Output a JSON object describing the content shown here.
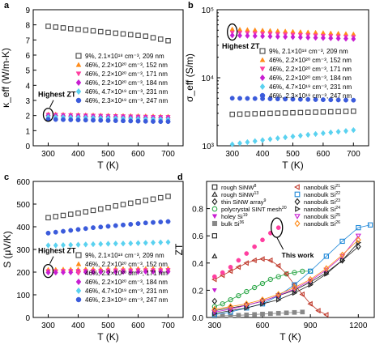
{
  "chart_data": [
    {
      "panel": "a",
      "type": "scatter",
      "xlabel": "T (K)",
      "ylabel": "κ_eff (W/m-K)",
      "xlim": [
        250,
        750
      ],
      "ylim": [
        0,
        9
      ],
      "xticks": [
        300,
        400,
        500,
        600,
        700
      ],
      "yticks": [
        0,
        1,
        2,
        3,
        4,
        5,
        6,
        7,
        8,
        9
      ],
      "legend_position": "right",
      "annotation": "Highest ZT",
      "x": [
        300,
        325,
        350,
        375,
        400,
        425,
        450,
        475,
        500,
        525,
        550,
        575,
        600,
        625,
        650,
        675,
        700
      ],
      "series": [
        {
          "name": "9%, 2.1×10¹⁸ cm⁻³, 209 nm",
          "marker": "square-open",
          "color": "#444444",
          "values": [
            7.9,
            7.85,
            7.8,
            7.75,
            7.7,
            7.65,
            7.6,
            7.55,
            7.5,
            7.45,
            7.4,
            7.35,
            7.3,
            7.25,
            7.15,
            7.05,
            6.95
          ]
        },
        {
          "name": "46%, 2.2×10²⁰ cm⁻³, 152 nm",
          "marker": "triangle",
          "color": "#ff8c1a",
          "values": [
            2.1,
            2.1,
            2.08,
            2.07,
            2.06,
            2.05,
            2.04,
            2.03,
            2.02,
            2.01,
            2.0,
            2.0,
            1.99,
            1.98,
            1.97,
            1.96,
            1.95
          ]
        },
        {
          "name": "46%, 2.2×10²⁰ cm⁻³, 171 nm",
          "marker": "triangle-down",
          "color": "#ff3fa0",
          "values": [
            2.05,
            2.04,
            2.03,
            2.02,
            2.01,
            2.0,
            1.99,
            1.98,
            1.97,
            1.96,
            1.95,
            1.94,
            1.93,
            1.92,
            1.91,
            1.9,
            1.9
          ]
        },
        {
          "name": "46%, 2.2×10²⁰ cm⁻³, 184 nm",
          "marker": "diamond",
          "color": "#c81ed2",
          "values": [
            2.0,
            1.99,
            1.98,
            1.97,
            1.96,
            1.95,
            1.94,
            1.93,
            1.92,
            1.91,
            1.9,
            1.89,
            1.88,
            1.87,
            1.86,
            1.85,
            1.85
          ]
        },
        {
          "name": "46%, 4.7×10¹⁹ cm⁻³, 231 nm",
          "marker": "diamond",
          "color": "#5ad2f0",
          "values": [
            1.9,
            1.89,
            1.88,
            1.87,
            1.86,
            1.85,
            1.84,
            1.83,
            1.82,
            1.81,
            1.8,
            1.79,
            1.78,
            1.77,
            1.76,
            1.75,
            1.75
          ]
        },
        {
          "name": "46%, 2.3×10¹⁹ cm⁻³, 247 nm",
          "marker": "circle",
          "color": "#3b5bdb",
          "values": [
            1.75,
            1.74,
            1.73,
            1.72,
            1.71,
            1.7,
            1.69,
            1.68,
            1.67,
            1.66,
            1.65,
            1.64,
            1.63,
            1.62,
            1.61,
            1.6,
            1.6
          ]
        }
      ]
    },
    {
      "panel": "b",
      "type": "scatter",
      "xlabel": "T (K)",
      "ylabel": "σ_eff (S/m)",
      "yscale": "log",
      "xlim": [
        250,
        750
      ],
      "ylim": [
        1000,
        100000
      ],
      "xticks": [
        300,
        400,
        500,
        600,
        700
      ],
      "ytick_labels": [
        "10³",
        "10⁴",
        "10⁵"
      ],
      "legend_position": "right",
      "annotation": "Highest ZT",
      "x": [
        300,
        325,
        350,
        375,
        400,
        425,
        450,
        475,
        500,
        525,
        550,
        575,
        600,
        625,
        650,
        675,
        700
      ],
      "series": [
        {
          "name": "9%, 2.1×10¹⁸ cm⁻³, 209 nm",
          "marker": "square-open",
          "color": "#444444",
          "values": [
            2900,
            2920,
            2940,
            2960,
            2980,
            3000,
            3020,
            3040,
            3060,
            3080,
            3100,
            3120,
            3140,
            3160,
            3180,
            3200,
            3220
          ]
        },
        {
          "name": "46%, 2.2×10²⁰ cm⁻³, 152 nm",
          "marker": "triangle",
          "color": "#ff8c1a",
          "values": [
            52000,
            51500,
            51000,
            50500,
            50000,
            49500,
            49000,
            48500,
            48000,
            47500,
            47000,
            46500,
            46000,
            45500,
            45000,
            44500,
            44000
          ]
        },
        {
          "name": "46%, 2.2×10²⁰ cm⁻³, 171 nm",
          "marker": "triangle-down",
          "color": "#ff3fa0",
          "values": [
            46000,
            45600,
            45200,
            44800,
            44400,
            44000,
            43600,
            43200,
            42800,
            42400,
            42000,
            41600,
            41200,
            40800,
            40400,
            40000,
            39600
          ]
        },
        {
          "name": "46%, 2.2×10²⁰ cm⁻³, 184 nm",
          "marker": "diamond",
          "color": "#c81ed2",
          "values": [
            42000,
            41700,
            41400,
            41100,
            40800,
            40500,
            40200,
            39900,
            39600,
            39300,
            39000,
            38700,
            38400,
            38100,
            37800,
            37500,
            37200
          ]
        },
        {
          "name": "46%, 4.7×10¹⁹ cm⁻³, 231 nm",
          "marker": "diamond",
          "color": "#5ad2f0",
          "values": [
            1050,
            1090,
            1130,
            1170,
            1210,
            1250,
            1290,
            1330,
            1370,
            1410,
            1450,
            1490,
            1530,
            1570,
            1610,
            1650,
            1700
          ]
        },
        {
          "name": "46%, 2.3×10¹⁹ cm⁻³, 247 nm",
          "marker": "circle",
          "color": "#3b5bdb",
          "values": [
            5000,
            4980,
            4960,
            4940,
            4920,
            4900,
            4880,
            4860,
            4840,
            4820,
            4800,
            4780,
            4760,
            4740,
            4720,
            4700,
            4680
          ]
        }
      ]
    },
    {
      "panel": "c",
      "type": "scatter",
      "xlabel": "T (K)",
      "ylabel": "S (μV/K)",
      "xlim": [
        250,
        750
      ],
      "ylim": [
        0,
        600
      ],
      "xticks": [
        300,
        400,
        500,
        600,
        700
      ],
      "yticks": [
        0,
        100,
        200,
        300,
        400,
        500,
        600
      ],
      "legend_position": "bottom-right",
      "annotation": "Highest ZT",
      "x": [
        300,
        325,
        350,
        375,
        400,
        425,
        450,
        475,
        500,
        525,
        550,
        575,
        600,
        625,
        650,
        675,
        700
      ],
      "series": [
        {
          "name": "9%, 2.1×10¹⁸ cm⁻³, 209 nm",
          "marker": "square-open",
          "color": "#444444",
          "values": [
            440,
            445,
            450,
            455,
            460,
            466,
            472,
            478,
            485,
            492,
            498,
            504,
            510,
            516,
            522,
            528,
            534
          ]
        },
        {
          "name": "46%, 2.2×10²⁰ cm⁻³, 152 nm",
          "marker": "triangle",
          "color": "#ff8c1a",
          "values": [
            212,
            212,
            213,
            213,
            213,
            214,
            214,
            214,
            215,
            215,
            215,
            215,
            216,
            216,
            216,
            216,
            217
          ]
        },
        {
          "name": "46%, 2.2×10²⁰ cm⁻³, 171 nm",
          "marker": "triangle-down",
          "color": "#ff3fa0",
          "values": [
            204,
            204,
            205,
            205,
            205,
            206,
            206,
            206,
            207,
            207,
            207,
            207,
            208,
            208,
            208,
            208,
            209
          ]
        },
        {
          "name": "46%, 2.2×10²⁰ cm⁻³, 184 nm",
          "marker": "diamond",
          "color": "#c81ed2",
          "values": [
            198,
            198,
            199,
            199,
            199,
            200,
            200,
            200,
            200,
            201,
            201,
            201,
            201,
            202,
            202,
            202,
            202
          ]
        },
        {
          "name": "46%, 4.7×10¹⁹ cm⁻³, 231 nm",
          "marker": "diamond",
          "color": "#5ad2f0",
          "values": [
            318,
            318,
            319,
            320,
            321,
            322,
            323,
            324,
            325,
            326,
            326,
            327,
            328,
            329,
            330,
            331,
            332
          ]
        },
        {
          "name": "46%, 2.3×10¹⁹ cm⁻³, 247 nm",
          "marker": "circle",
          "color": "#3b5bdb",
          "values": [
            372,
            376,
            380,
            384,
            388,
            392,
            396,
            399,
            402,
            405,
            408,
            411,
            414,
            417,
            419,
            421,
            423
          ]
        }
      ]
    },
    {
      "panel": "d",
      "type": "scatter",
      "xlabel": "T (K)",
      "ylabel": "ZT",
      "xlim": [
        250,
        1300
      ],
      "ylim": [
        0,
        1.0
      ],
      "xticks": [
        300,
        600,
        900,
        1200
      ],
      "yticks": [
        0.0,
        0.2,
        0.4,
        0.6,
        0.8
      ],
      "legend_position": "top",
      "annotation": "This work",
      "series": [
        {
          "name": "rough SiNW",
          "ref": "8",
          "marker": "square-open",
          "color": "#222222",
          "x": [
            300
          ],
          "y": [
            0.6
          ]
        },
        {
          "name": "rough SiNW",
          "ref": "13",
          "marker": "triangle-open",
          "color": "#222222",
          "x": [
            300
          ],
          "y": [
            0.45
          ]
        },
        {
          "name": "thin SiNW array",
          "ref": "9",
          "marker": "diamond-open",
          "color": "#222222",
          "x": [
            300
          ],
          "y": [
            0.12
          ]
        },
        {
          "name": "polycrystal SINT mesh",
          "ref": "20",
          "marker": "circle-open",
          "color": "#2ea84a",
          "x": [
            300,
            350,
            400,
            450,
            500,
            550,
            600,
            650,
            700,
            750,
            800,
            850,
            900
          ],
          "y": [
            0.08,
            0.1,
            0.13,
            0.16,
            0.19,
            0.22,
            0.25,
            0.28,
            0.3,
            0.32,
            0.33,
            0.34,
            0.34
          ]
        },
        {
          "name": "holey Si",
          "ref": "19",
          "marker": "triangle-down",
          "color": "#c81ed2",
          "x": [
            300
          ],
          "y": [
            0.2
          ]
        },
        {
          "name": "bulk Si",
          "ref": "36",
          "marker": "square",
          "color": "#888888",
          "x": [
            300,
            350,
            400,
            450,
            500,
            550,
            600,
            650,
            700,
            750,
            800,
            850
          ],
          "y": [
            0.01,
            0.012,
            0.014,
            0.016,
            0.019,
            0.022,
            0.025,
            0.028,
            0.031,
            0.034,
            0.037,
            0.04
          ]
        },
        {
          "name": "nanobulk Si",
          "ref": "21",
          "marker": "triangle-left-open",
          "color": "#c0392b",
          "x": [
            300,
            350,
            400,
            450,
            500,
            550,
            600,
            650,
            700,
            750,
            800,
            850,
            900,
            950,
            1000
          ],
          "y": [
            0.28,
            0.31,
            0.34,
            0.37,
            0.4,
            0.42,
            0.43,
            0.42,
            0.38,
            0.32,
            0.24,
            0.17,
            0.1,
            0.05,
            0.02
          ]
        },
        {
          "name": "nanobulk Si",
          "ref": "22",
          "marker": "square-open",
          "color": "#1f88d8",
          "x": [
            300,
            400,
            500,
            600,
            700,
            800,
            900,
            1000,
            1100,
            1200,
            1275
          ],
          "y": [
            0.02,
            0.04,
            0.07,
            0.1,
            0.16,
            0.24,
            0.34,
            0.45,
            0.56,
            0.66,
            0.68
          ]
        },
        {
          "name": "nanobulk Si",
          "ref": "23",
          "marker": "diamond-open",
          "color": "#222222",
          "x": [
            300,
            400,
            500,
            600,
            700,
            800,
            900,
            1000,
            1100,
            1200
          ],
          "y": [
            0.05,
            0.07,
            0.09,
            0.12,
            0.16,
            0.2,
            0.26,
            0.33,
            0.42,
            0.52
          ]
        },
        {
          "name": "nanobulk Si",
          "ref": "24",
          "marker": "triangle-right-open",
          "color": "#222222",
          "x": [
            300,
            400,
            500,
            600,
            700,
            800,
            900,
            1000,
            1100,
            1200
          ],
          "y": [
            0.03,
            0.05,
            0.07,
            0.1,
            0.13,
            0.18,
            0.24,
            0.32,
            0.42,
            0.55
          ]
        },
        {
          "name": "nanobulk Si",
          "ref": "25",
          "marker": "triangle-down-open",
          "color": "#c81ed2",
          "x": [
            300,
            400,
            500,
            600,
            700,
            800,
            900,
            1000,
            1100,
            1200
          ],
          "y": [
            0.04,
            0.06,
            0.09,
            0.12,
            0.16,
            0.21,
            0.27,
            0.35,
            0.45,
            0.6
          ]
        },
        {
          "name": "nanobulk Si",
          "ref": "26",
          "marker": "diamond-open",
          "color": "#ff8c1a",
          "x": [
            300,
            400,
            500,
            600,
            700,
            800,
            900,
            1000,
            1100,
            1200
          ],
          "y": [
            0.06,
            0.08,
            0.1,
            0.13,
            0.17,
            0.22,
            0.28,
            0.36,
            0.46,
            0.57
          ]
        },
        {
          "name": "This work",
          "marker": "mixed-filled",
          "color": "#ff3fa0",
          "x": [
            300,
            350,
            400,
            450,
            500,
            550,
            600,
            650,
            700
          ],
          "y": [
            0.3,
            0.33,
            0.37,
            0.42,
            0.47,
            0.52,
            0.57,
            0.62,
            0.66
          ]
        }
      ]
    }
  ]
}
